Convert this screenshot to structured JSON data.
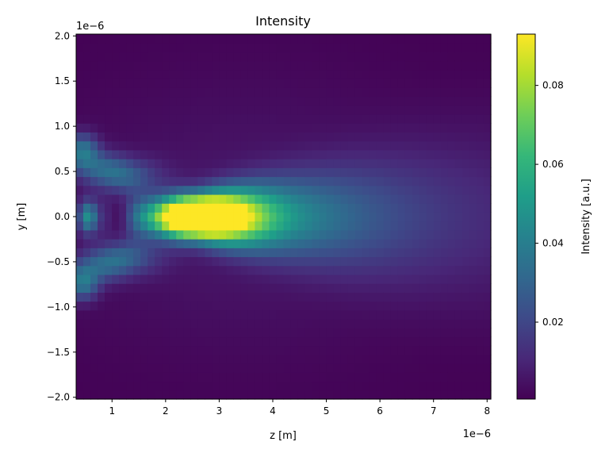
{
  "chart_data": {
    "type": "heatmap",
    "title": "Intensity",
    "xlabel": "z [m]",
    "ylabel": "y [m]",
    "x_offset_label": "1e−6",
    "y_offset_label": "1e−6",
    "xlim": [
      0.33,
      8.07
    ],
    "ylim": [
      -2.02,
      2.02
    ],
    "x_ticks": [
      {
        "value": 1,
        "label": "1"
      },
      {
        "value": 2,
        "label": "2"
      },
      {
        "value": 3,
        "label": "3"
      },
      {
        "value": 4,
        "label": "4"
      },
      {
        "value": 5,
        "label": "5"
      },
      {
        "value": 6,
        "label": "6"
      },
      {
        "value": 7,
        "label": "7"
      },
      {
        "value": 8,
        "label": "8"
      }
    ],
    "y_ticks": [
      {
        "value": -2.0,
        "label": "−2.0"
      },
      {
        "value": -1.5,
        "label": "−1.5"
      },
      {
        "value": -1.0,
        "label": "−1.0"
      },
      {
        "value": -0.5,
        "label": "−0.5"
      },
      {
        "value": 0.0,
        "label": "0.0"
      },
      {
        "value": 0.5,
        "label": "0.5"
      },
      {
        "value": 1.0,
        "label": "1.0"
      },
      {
        "value": 1.5,
        "label": "1.5"
      },
      {
        "value": 2.0,
        "label": "2.0"
      }
    ],
    "colorbar": {
      "label": "Intensity [a.u.]",
      "colormap": "viridis",
      "vmin": 0.0005,
      "vmax": 0.093,
      "ticks": [
        {
          "value": 0.02,
          "label": "0.02"
        },
        {
          "value": 0.04,
          "label": "0.04"
        },
        {
          "value": 0.06,
          "label": "0.06"
        },
        {
          "value": 0.08,
          "label": "0.08"
        }
      ]
    },
    "grid": false,
    "features": {
      "peak_intensity": 0.092,
      "peak_z": 2.5,
      "peak_y": 0.0,
      "dark_gap_z": 1.1,
      "beam_waist_spread": "broadens beyond z = 4"
    }
  }
}
